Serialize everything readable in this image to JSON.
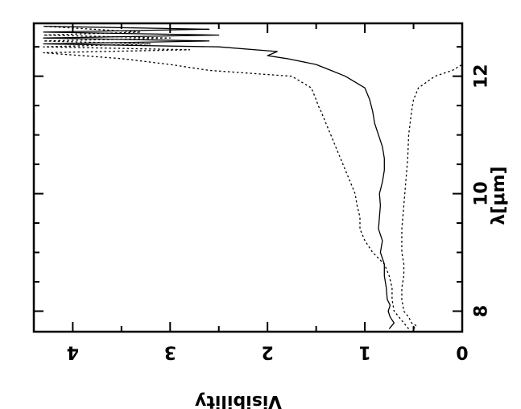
{
  "chart_data": {
    "type": "line",
    "title": "",
    "xlabel": "λ[μm]",
    "ylabel": "Visibility",
    "orientation": "rotated-90-clockwise",
    "xlim": [
      7.65,
      12.9
    ],
    "ylim": [
      0,
      4.4
    ],
    "x_ticks_major": [
      8,
      10,
      12
    ],
    "x_ticks_minor": [
      8.5,
      9,
      9.5,
      10.5,
      11,
      11.5,
      12.5
    ],
    "y_ticks_major": [
      0,
      1,
      2,
      3,
      4
    ],
    "y_ticks_minor": [
      0.5,
      1.5,
      2.5,
      3.5
    ],
    "grid": false,
    "series": [
      {
        "style": "solid",
        "points": [
          [
            7.7,
            0.75
          ],
          [
            7.8,
            0.7
          ],
          [
            7.9,
            0.74
          ],
          [
            8.0,
            0.76
          ],
          [
            8.1,
            0.74
          ],
          [
            8.2,
            0.77
          ],
          [
            8.4,
            0.78
          ],
          [
            8.6,
            0.8
          ],
          [
            8.8,
            0.8
          ],
          [
            9.0,
            0.84
          ],
          [
            9.2,
            0.82
          ],
          [
            9.4,
            0.86
          ],
          [
            9.6,
            0.85
          ],
          [
            9.8,
            0.84
          ],
          [
            10.0,
            0.85
          ],
          [
            10.2,
            0.82
          ],
          [
            10.4,
            0.8
          ],
          [
            10.6,
            0.8
          ],
          [
            10.8,
            0.82
          ],
          [
            11.0,
            0.86
          ],
          [
            11.2,
            0.9
          ],
          [
            11.4,
            0.92
          ],
          [
            11.6,
            0.95
          ],
          [
            11.8,
            1.0
          ],
          [
            12.0,
            1.2
          ],
          [
            12.1,
            1.35
          ],
          [
            12.2,
            1.5
          ],
          [
            12.3,
            1.8
          ],
          [
            12.35,
            2.0
          ],
          [
            12.42,
            1.9
          ],
          [
            12.5,
            2.5
          ],
          [
            12.55,
            4.3
          ],
          [
            12.6,
            2.6
          ],
          [
            12.65,
            4.3
          ],
          [
            12.7,
            2.5
          ],
          [
            12.75,
            4.3
          ],
          [
            12.8,
            2.6
          ],
          [
            12.85,
            4.3
          ]
        ]
      },
      {
        "style": "dotted",
        "points": [
          [
            7.7,
            0.55
          ],
          [
            7.8,
            0.6
          ],
          [
            7.9,
            0.65
          ],
          [
            8.0,
            0.7
          ],
          [
            8.2,
            0.72
          ],
          [
            8.4,
            0.72
          ],
          [
            8.6,
            0.75
          ],
          [
            8.8,
            0.8
          ],
          [
            9.0,
            0.92
          ],
          [
            9.2,
            1.0
          ],
          [
            9.4,
            1.05
          ],
          [
            9.6,
            1.05
          ],
          [
            9.8,
            1.08
          ],
          [
            10.0,
            1.1
          ],
          [
            10.2,
            1.15
          ],
          [
            10.4,
            1.2
          ],
          [
            10.6,
            1.25
          ],
          [
            10.8,
            1.3
          ],
          [
            11.0,
            1.35
          ],
          [
            11.2,
            1.4
          ],
          [
            11.4,
            1.45
          ],
          [
            11.5,
            1.48
          ],
          [
            11.6,
            1.5
          ],
          [
            11.8,
            1.55
          ],
          [
            12.0,
            1.75
          ],
          [
            12.1,
            2.6
          ],
          [
            12.2,
            3.0
          ],
          [
            12.3,
            3.5
          ],
          [
            12.4,
            4.3
          ],
          [
            12.45,
            2.8
          ],
          [
            12.5,
            4.3
          ],
          [
            12.55,
            3.2
          ],
          [
            12.6,
            4.3
          ],
          [
            12.65,
            3.0
          ],
          [
            12.7,
            4.3
          ],
          [
            12.75,
            3.3
          ],
          [
            12.85,
            4.3
          ]
        ]
      },
      {
        "style": "dotted",
        "points": [
          [
            7.7,
            0.5
          ],
          [
            7.75,
            0.47
          ],
          [
            7.8,
            0.52
          ],
          [
            7.9,
            0.55
          ],
          [
            8.0,
            0.6
          ],
          [
            8.2,
            0.62
          ],
          [
            8.4,
            0.62
          ],
          [
            8.6,
            0.6
          ],
          [
            8.8,
            0.6
          ],
          [
            9.0,
            0.62
          ],
          [
            9.4,
            0.62
          ],
          [
            9.8,
            0.6
          ],
          [
            10.2,
            0.58
          ],
          [
            10.6,
            0.56
          ],
          [
            11.0,
            0.55
          ],
          [
            11.4,
            0.52
          ],
          [
            11.6,
            0.5
          ],
          [
            11.8,
            0.45
          ],
          [
            12.0,
            0.28
          ],
          [
            12.1,
            0.1
          ],
          [
            12.2,
            0.0
          ]
        ]
      }
    ]
  }
}
